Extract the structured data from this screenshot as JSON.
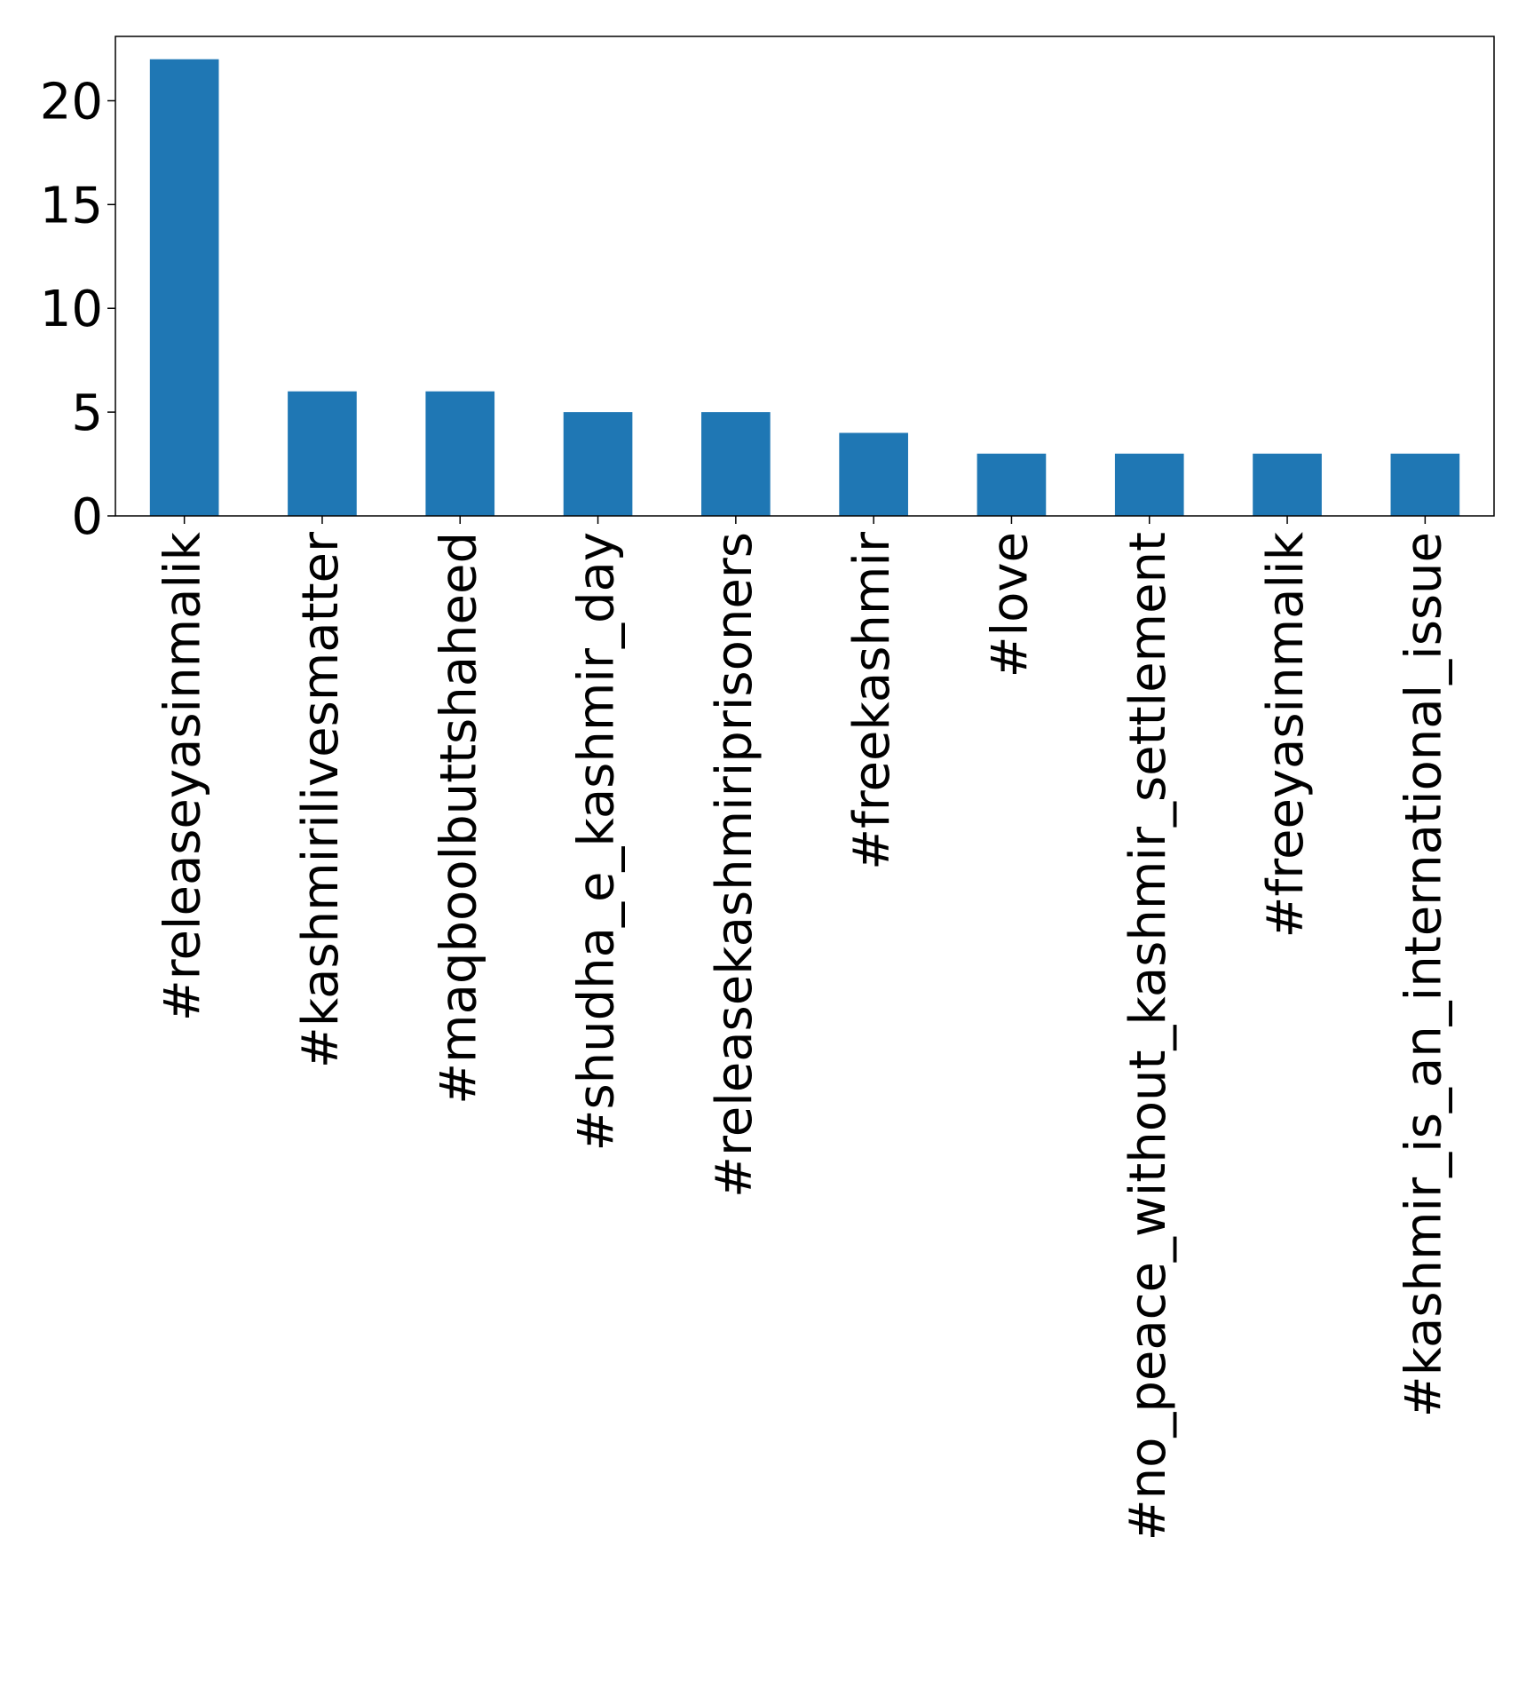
{
  "chart_data": {
    "type": "bar",
    "title": "",
    "xlabel": "",
    "ylabel": "",
    "categories": [
      "#releaseyasinmalik",
      "#kashmirilivesmatter",
      "#maqboolbuttshaheed",
      "#shudha_e_kashmir_day",
      "#releasekashmiriprisoners",
      "#freekashmir",
      "#love",
      "#no_peace_without_kashmir_settlement",
      "#freeyasinmalik",
      "#kashmir_is_an_international_issue"
    ],
    "values": [
      22,
      6,
      6,
      5,
      5,
      4,
      3,
      3,
      3,
      3
    ],
    "ylim": [
      0,
      23.1
    ],
    "yticks": [
      0,
      5,
      10,
      15,
      20
    ],
    "grid": false,
    "legend": "none",
    "colors": {
      "bar": "#1f77b4",
      "axis": "#000000",
      "background": "#ffffff"
    }
  }
}
